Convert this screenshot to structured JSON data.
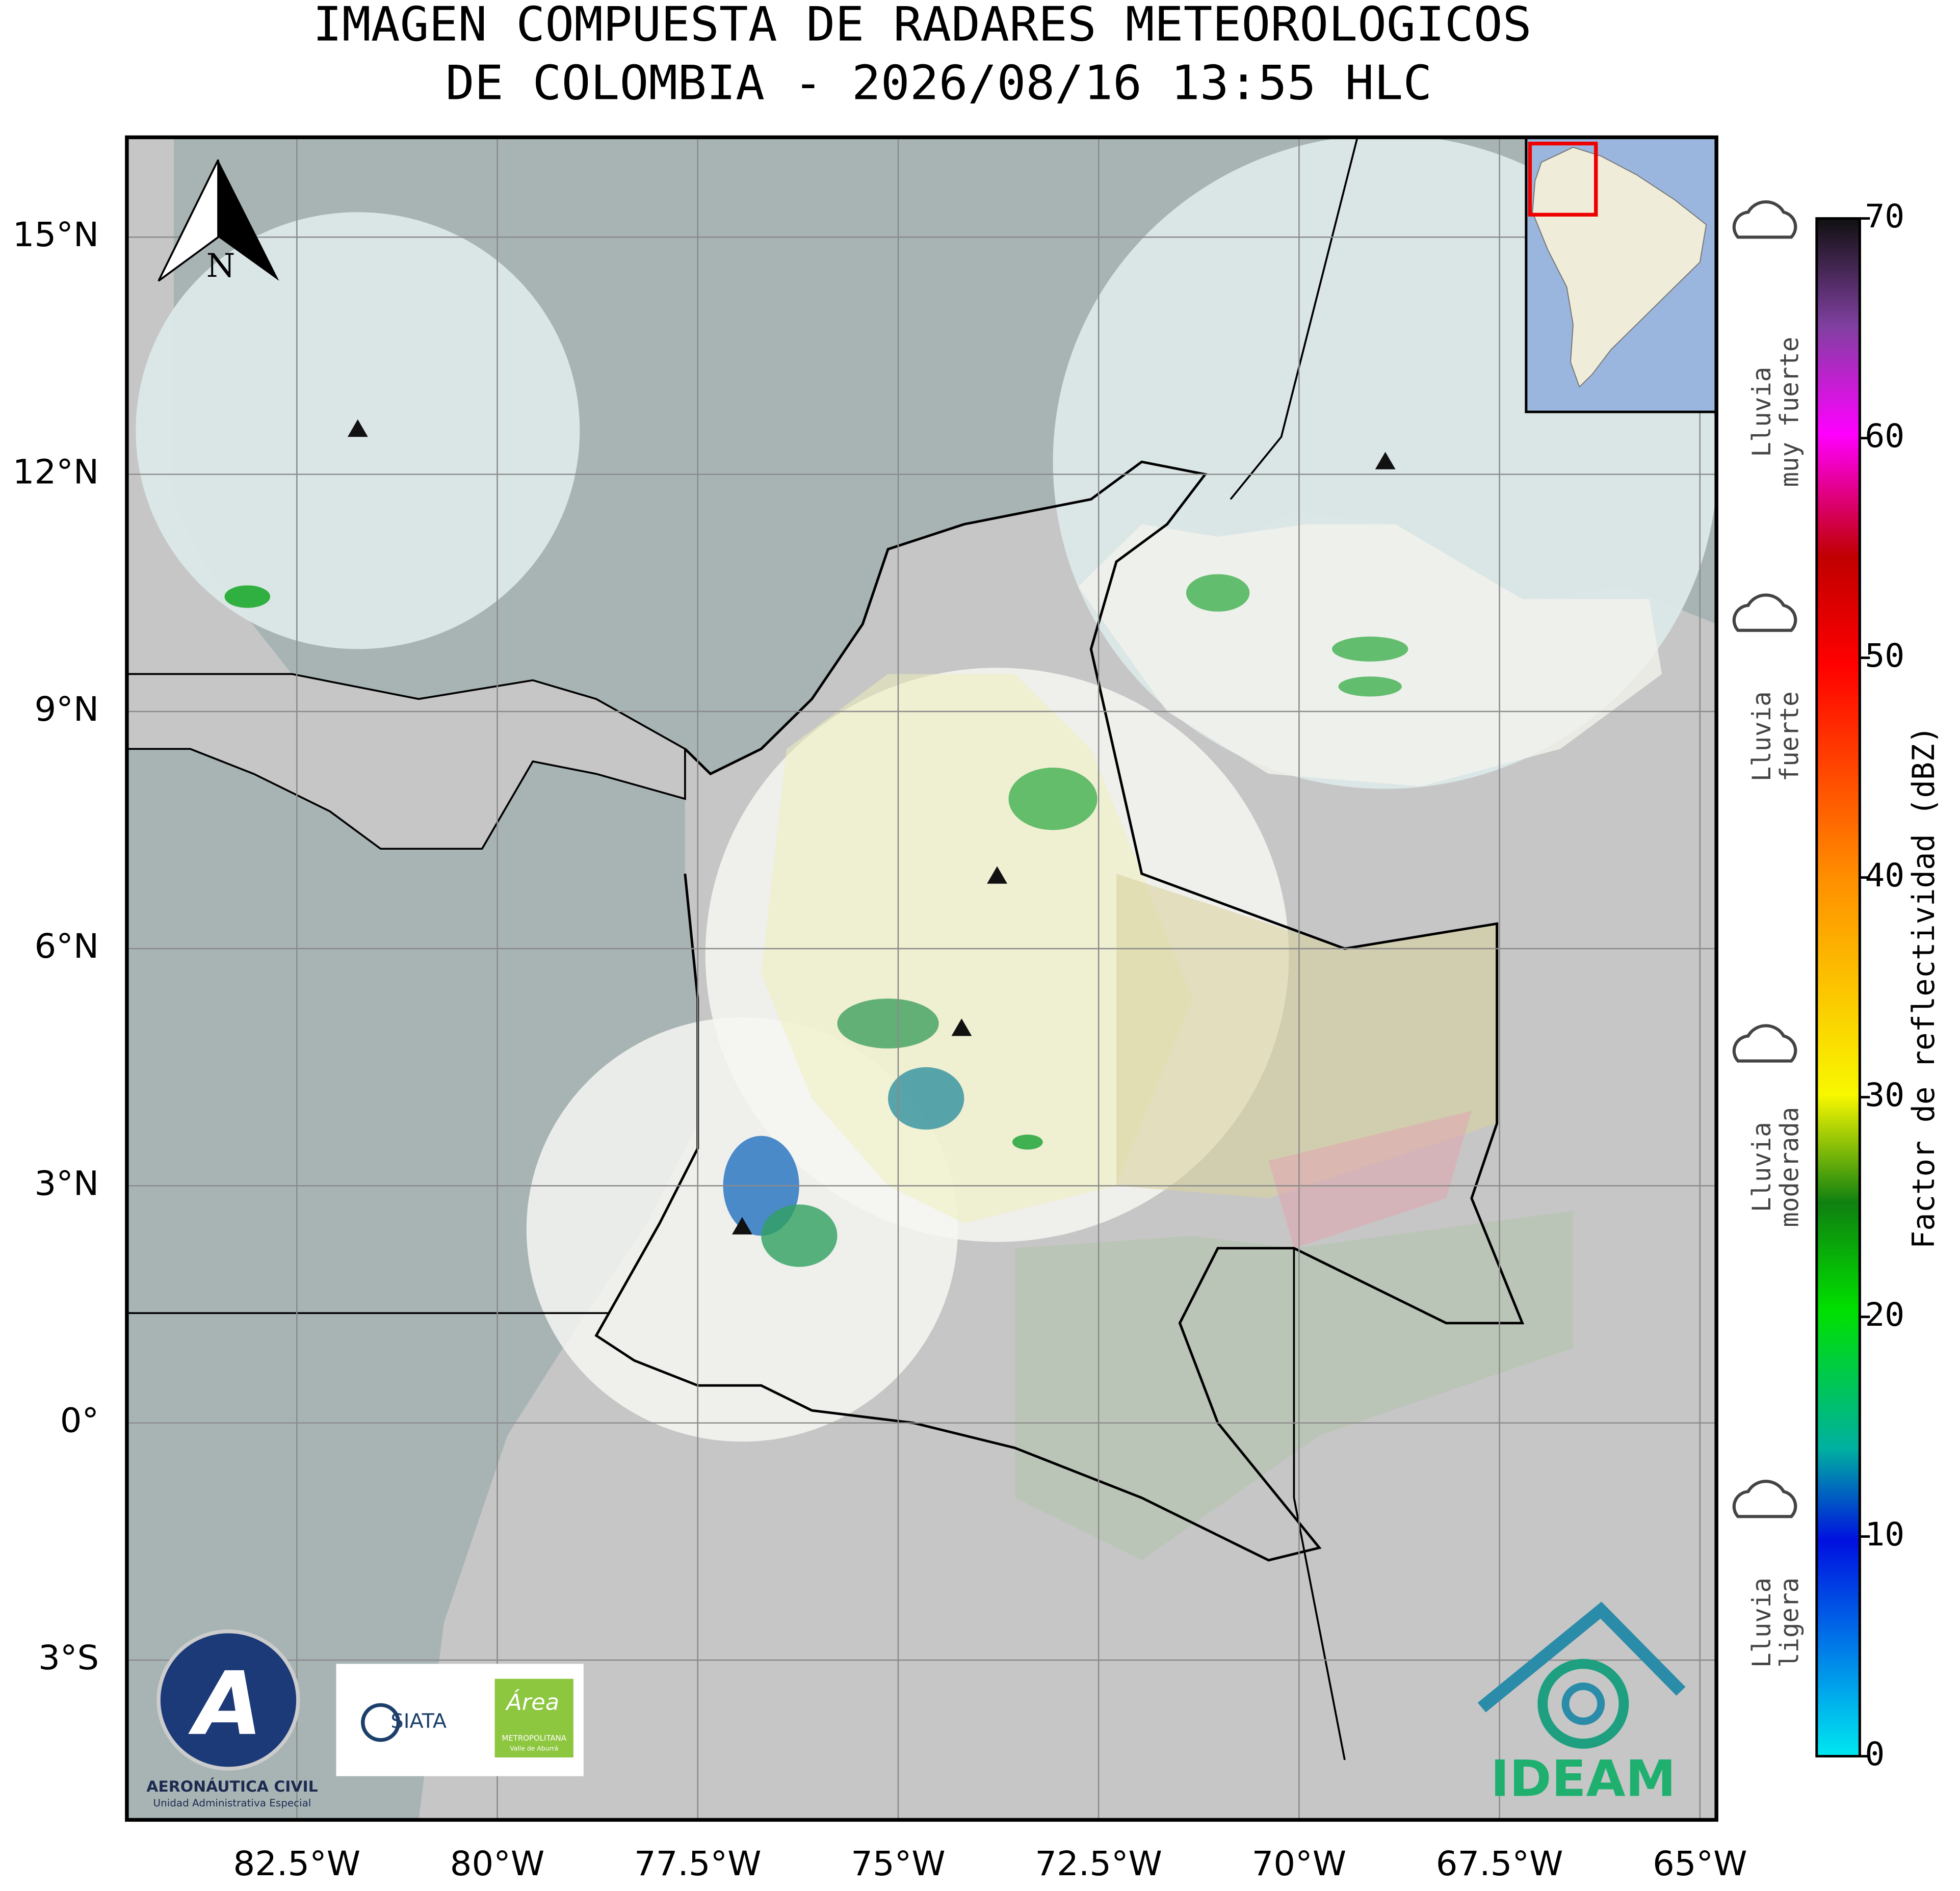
{
  "header": {
    "title_line1": "IMAGEN COMPUESTA DE RADARES METEOROLOGICOS",
    "title_line2": "DE COLOMBIA - 2026/08/16 13:55 HLC"
  },
  "map": {
    "lon_ticks": [
      {
        "value": -82.5,
        "label": "82.5°W"
      },
      {
        "value": -80,
        "label": "80°W"
      },
      {
        "value": -77.5,
        "label": "77.5°W"
      },
      {
        "value": -75,
        "label": "75°W"
      },
      {
        "value": -72.5,
        "label": "72.5°W"
      },
      {
        "value": -70,
        "label": "70°W"
      },
      {
        "value": -67.5,
        "label": "67.5°W"
      },
      {
        "value": -65,
        "label": "65°W"
      }
    ],
    "lat_ticks": [
      {
        "value": 15,
        "label": "15°N"
      },
      {
        "value": 12,
        "label": "12°N"
      },
      {
        "value": 9,
        "label": "9°N"
      },
      {
        "value": 6,
        "label": "6°N"
      },
      {
        "value": 3,
        "label": "3°N"
      },
      {
        "value": 0,
        "label": "0°"
      },
      {
        "value": -3,
        "label": "3°S"
      }
    ],
    "north_label": "N"
  },
  "colorbar": {
    "label": "Factor de reflectividad (dBZ)",
    "lim": [
      0,
      70
    ],
    "ticks": [
      0,
      10,
      20,
      30,
      40,
      50,
      60,
      70
    ]
  },
  "rain_categories": [
    {
      "line1": "Lluvia",
      "line2": "ligera"
    },
    {
      "line1": "Lluvia",
      "line2": "moderada"
    },
    {
      "line1": "Lluvia",
      "line2": "fuerte"
    },
    {
      "line1": "Lluvia",
      "line2": "muy fuerte"
    }
  ],
  "logos": {
    "aerocivil_name": "AERONÁUTICA CIVIL",
    "aerocivil_sub": "Unidad Administrativa Especial",
    "siata": "SIATA",
    "area": "Área",
    "area_sub1": "METROPOLITANA",
    "area_sub2": "Valle de Aburrá",
    "ideam": "IDEAM"
  }
}
